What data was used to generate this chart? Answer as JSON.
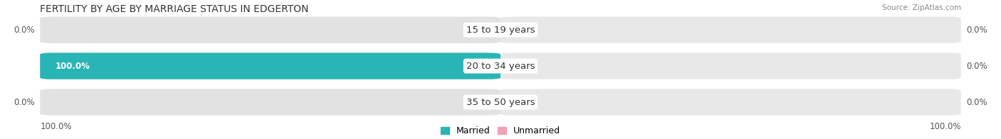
{
  "title": "FERTILITY BY AGE BY MARRIAGE STATUS IN EDGERTON",
  "source": "Source: ZipAtlas.com",
  "rows": [
    {
      "label": "15 to 19 years",
      "married": 0.0,
      "unmarried": 0.0
    },
    {
      "label": "20 to 34 years",
      "married": 100.0,
      "unmarried": 0.0
    },
    {
      "label": "35 to 50 years",
      "married": 0.0,
      "unmarried": 0.0
    }
  ],
  "married_color": "#29b5b5",
  "unmarried_color": "#f4a0b5",
  "bar_bg_married": "#e2e2e2",
  "bar_bg_unmarried": "#e8e8e8",
  "max_val": 100.0,
  "left_axis_label": "100.0%",
  "right_axis_label": "100.0%",
  "legend_married": "Married",
  "legend_unmarried": "Unmarried",
  "title_fontsize": 10,
  "source_fontsize": 7.5,
  "value_fontsize": 8.5,
  "label_fontsize": 9.5,
  "legend_fontsize": 9,
  "axis_label_fontsize": 8.5
}
